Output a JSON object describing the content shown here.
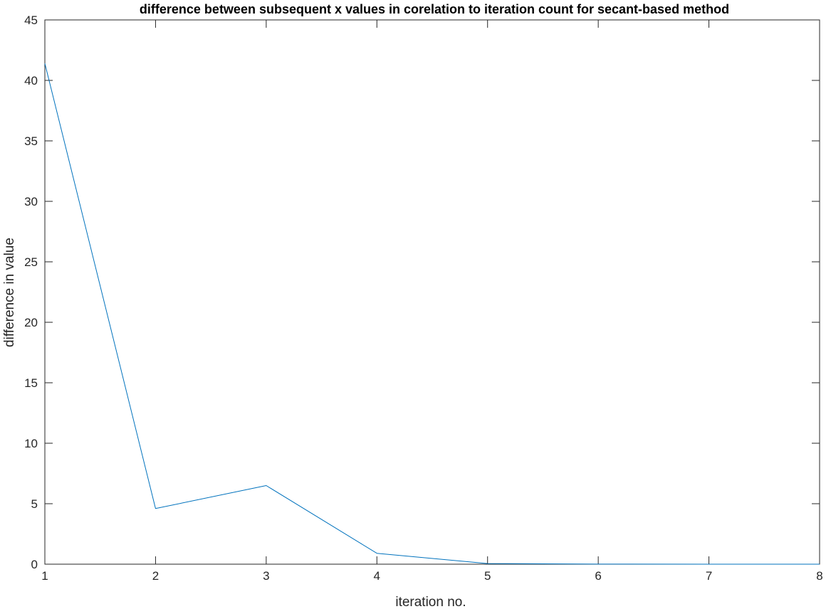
{
  "chart_data": {
    "type": "line",
    "title": "difference between subsequent x values in corelation to iteration count for secant-based method",
    "xlabel": "iteration no.",
    "ylabel": "difference in value",
    "xlim": [
      1,
      8
    ],
    "ylim": [
      0,
      45
    ],
    "xticks": [
      1,
      2,
      3,
      4,
      5,
      6,
      7,
      8
    ],
    "yticks": [
      0,
      5,
      10,
      15,
      20,
      25,
      30,
      35,
      40,
      45
    ],
    "grid": false,
    "box": true,
    "series": [
      {
        "x": [
          1,
          2,
          3,
          4,
          5,
          6,
          7,
          8
        ],
        "values": [
          41.4,
          4.6,
          6.5,
          0.9,
          0.05,
          0.01,
          0.0,
          0.0
        ],
        "color": "#0072bd"
      }
    ]
  },
  "colors": {
    "axis": "#262626",
    "line": "#0072bd",
    "background": "#ffffff"
  }
}
